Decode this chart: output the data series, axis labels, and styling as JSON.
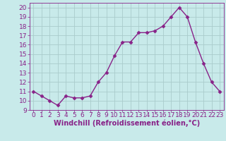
{
  "x": [
    0,
    1,
    2,
    3,
    4,
    5,
    6,
    7,
    8,
    9,
    10,
    11,
    12,
    13,
    14,
    15,
    16,
    17,
    18,
    19,
    20,
    21,
    22,
    23
  ],
  "y": [
    11,
    10.5,
    10,
    9.5,
    10.5,
    10.3,
    10.3,
    10.5,
    12,
    13,
    14.8,
    16.3,
    16.3,
    17.3,
    17.3,
    17.5,
    18,
    19,
    20,
    19,
    16.3,
    14,
    12,
    11
  ],
  "line_color": "#882288",
  "marker": "D",
  "marker_size": 2.5,
  "bg_color": "#c8eaea",
  "grid_color": "#aacccc",
  "xlabel": "Windchill (Refroidissement éolien,°C)",
  "xlabel_color": "#882288",
  "tick_color": "#882288",
  "ylim": [
    9,
    20.5
  ],
  "yticks": [
    9,
    10,
    11,
    12,
    13,
    14,
    15,
    16,
    17,
    18,
    19,
    20
  ],
  "xlim": [
    -0.5,
    23.5
  ],
  "line_width": 1.0,
  "font_size": 6.5,
  "xlabel_fontsize": 7.0
}
